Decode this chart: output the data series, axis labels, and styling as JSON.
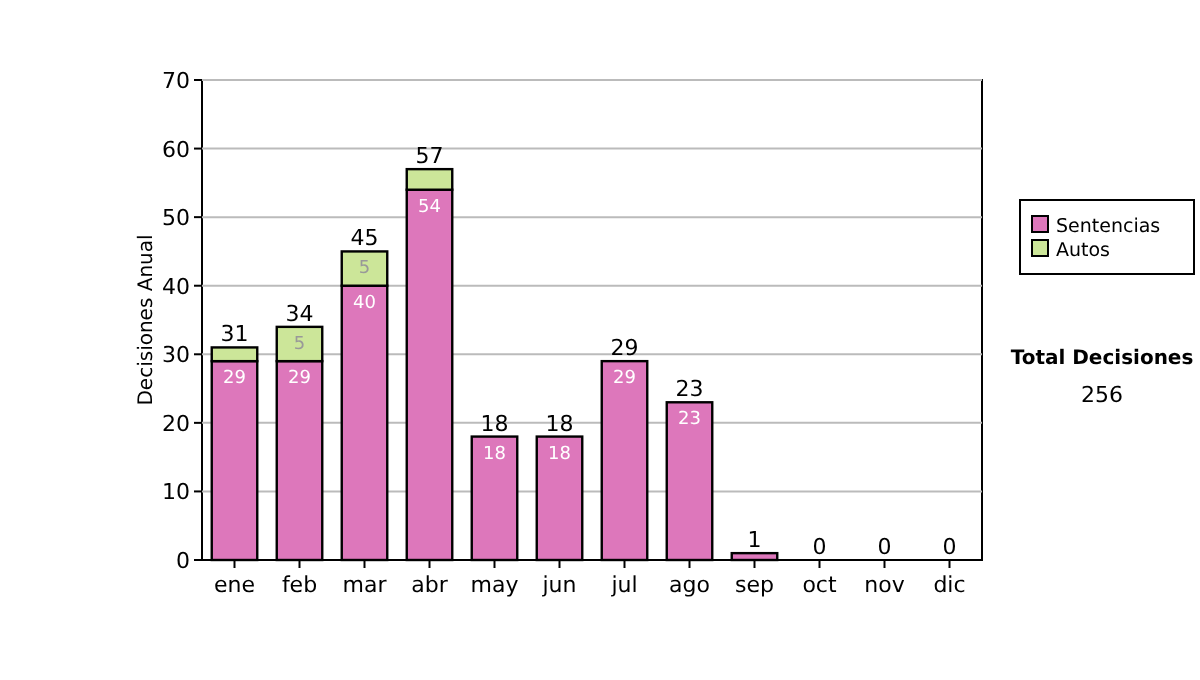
{
  "chart_data": {
    "type": "bar",
    "stacked": true,
    "ylabel": "Decisiones Anual",
    "categories": [
      "ene",
      "feb",
      "mar",
      "abr",
      "may",
      "jun",
      "jul",
      "ago",
      "sep",
      "oct",
      "nov",
      "dic"
    ],
    "series": [
      {
        "name": "Sentencias",
        "color": "#dd77bb",
        "values": [
          29,
          29,
          40,
          54,
          18,
          18,
          29,
          23,
          1,
          0,
          0,
          0
        ],
        "value_labels": [
          "29",
          "29",
          "40",
          "54",
          "18",
          "18",
          "29",
          "23",
          null,
          null,
          null,
          null
        ]
      },
      {
        "name": "Autos",
        "color": "#cce699",
        "values": [
          2,
          5,
          5,
          3,
          0,
          0,
          0,
          0,
          0,
          0,
          0,
          0
        ],
        "value_labels": [
          null,
          "5",
          "5",
          null,
          null,
          null,
          null,
          null,
          null,
          null,
          null,
          null
        ]
      }
    ],
    "totals": [
      "31",
      "34",
      "45",
      "57",
      "18",
      "18",
      "29",
      "23",
      "1",
      "0",
      "0",
      "0"
    ],
    "ylim": [
      0,
      70
    ],
    "yticks": [
      0,
      10,
      20,
      30,
      40,
      50,
      60,
      70
    ],
    "grid": "y",
    "legend": "right",
    "annotations": [
      "Total Decisiones",
      "256"
    ]
  }
}
